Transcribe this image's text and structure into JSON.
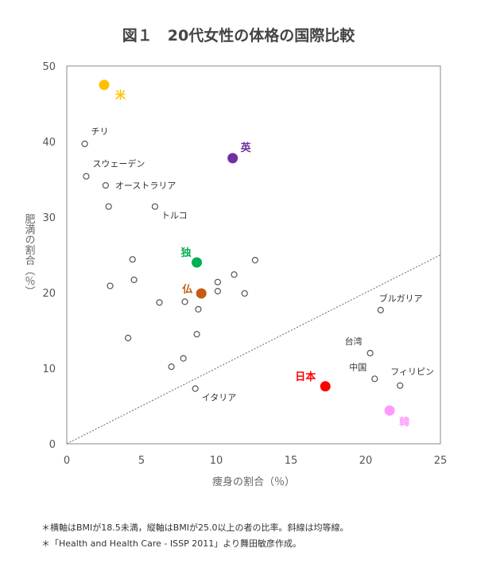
{
  "chart_data": {
    "type": "scatter",
    "title": "図１　20代女性の体格の国際比較",
    "xlabel": "痩身の割合（％）",
    "ylabel": "肥満の割合（％）",
    "xlim": [
      0,
      25
    ],
    "ylim": [
      0,
      50
    ],
    "xticks": [
      0,
      5,
      10,
      15,
      20,
      25
    ],
    "yticks": [
      0,
      10,
      20,
      30,
      40,
      50
    ],
    "grid": false,
    "reference_line": {
      "from": [
        0,
        0
      ],
      "to": [
        25,
        25
      ],
      "style": "dotted"
    },
    "highlighted": [
      {
        "label": "米",
        "x": 2.5,
        "y": 47.5,
        "color": "#FFC000"
      },
      {
        "label": "英",
        "x": 11.1,
        "y": 37.8,
        "color": "#7030A0"
      },
      {
        "label": "独",
        "x": 8.7,
        "y": 24.0,
        "color": "#00B050"
      },
      {
        "label": "仏",
        "x": 9.0,
        "y": 19.9,
        "color": "#C55A11"
      },
      {
        "label": "日本",
        "x": 17.3,
        "y": 7.6,
        "color": "#FF0000"
      },
      {
        "label": "韓",
        "x": 21.6,
        "y": 4.4,
        "color": "#FF99FF"
      }
    ],
    "points": [
      {
        "label": "チリ",
        "x": 1.2,
        "y": 39.7
      },
      {
        "label": "スウェーデン",
        "x": 1.3,
        "y": 35.4
      },
      {
        "label": "オーストラリア",
        "x": 2.6,
        "y": 34.2
      },
      {
        "label": "",
        "x": 2.8,
        "y": 31.4
      },
      {
        "label": "トルコ",
        "x": 5.9,
        "y": 31.4
      },
      {
        "label": "",
        "x": 4.4,
        "y": 24.4
      },
      {
        "label": "",
        "x": 12.6,
        "y": 24.3
      },
      {
        "label": "",
        "x": 2.9,
        "y": 20.9
      },
      {
        "label": "",
        "x": 4.5,
        "y": 21.7
      },
      {
        "label": "",
        "x": 11.2,
        "y": 22.4
      },
      {
        "label": "",
        "x": 10.1,
        "y": 21.4
      },
      {
        "label": "",
        "x": 10.1,
        "y": 20.2
      },
      {
        "label": "",
        "x": 11.9,
        "y": 19.9
      },
      {
        "label": "",
        "x": 6.2,
        "y": 18.7
      },
      {
        "label": "",
        "x": 7.9,
        "y": 18.8
      },
      {
        "label": "",
        "x": 8.8,
        "y": 17.8
      },
      {
        "label": "",
        "x": 8.7,
        "y": 14.5
      },
      {
        "label": "",
        "x": 4.1,
        "y": 14.0
      },
      {
        "label": "",
        "x": 7.8,
        "y": 11.3
      },
      {
        "label": "",
        "x": 7.0,
        "y": 10.2
      },
      {
        "label": "イタリア",
        "x": 8.6,
        "y": 7.3
      },
      {
        "label": "ブルガリア",
        "x": 21.0,
        "y": 17.7
      },
      {
        "label": "台湾",
        "x": 20.3,
        "y": 12.0
      },
      {
        "label": "中国",
        "x": 20.6,
        "y": 8.6
      },
      {
        "label": "フィリピン",
        "x": 22.3,
        "y": 7.7
      }
    ]
  },
  "notes": [
    "＊横軸はBMIが18.5未満，縦軸はBMIが25.0以上の者の比率。斜線は均等線。",
    "＊「Health and Health Care - ISSP 2011」より舞田敏彦作成。"
  ]
}
